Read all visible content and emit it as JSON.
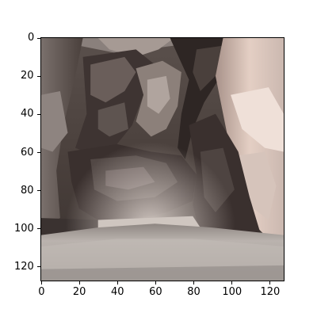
{
  "image": {
    "subject": "slot canyon photograph",
    "width": 128,
    "height": 128,
    "palette": {
      "dark_rock": "#2e2624",
      "mid_rock": "#6e6460",
      "light_rock": "#c8b8b0",
      "highlight": "#e8d8d0",
      "floor": "#b0aaa6",
      "sky_glow": "#d8cfc8"
    }
  },
  "axes": {
    "x_ticks": [
      "0",
      "20",
      "40",
      "60",
      "80",
      "100",
      "120"
    ],
    "y_ticks": [
      "0",
      "20",
      "40",
      "60",
      "80",
      "100",
      "120"
    ],
    "x_tick_values": [
      0,
      20,
      40,
      60,
      80,
      100,
      120
    ],
    "y_tick_values": [
      0,
      20,
      40,
      60,
      80,
      100,
      120
    ],
    "xlim": [
      -0.5,
      127.5
    ],
    "ylim": [
      127.5,
      -0.5
    ]
  }
}
